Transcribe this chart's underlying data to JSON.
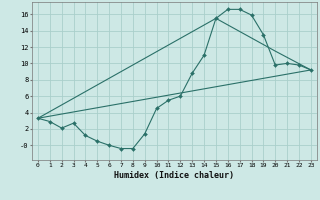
{
  "background_color": "#cde8e5",
  "grid_color": "#aacfcb",
  "line_color": "#2a7068",
  "marker_color": "#2a7068",
  "xlabel": "Humidex (Indice chaleur)",
  "xlim": [
    -0.5,
    23.5
  ],
  "ylim": [
    -1.8,
    17.5
  ],
  "xticks": [
    0,
    1,
    2,
    3,
    4,
    5,
    6,
    7,
    8,
    9,
    10,
    11,
    12,
    13,
    14,
    15,
    16,
    17,
    18,
    19,
    20,
    21,
    22,
    23
  ],
  "yticks": [
    0,
    2,
    4,
    6,
    8,
    10,
    12,
    14,
    16
  ],
  "ytick_labels": [
    "-0",
    "2",
    "4",
    "6",
    "8",
    "10",
    "12",
    "14",
    "16"
  ],
  "line1_x": [
    0,
    1,
    2,
    3,
    4,
    5,
    6,
    7,
    8,
    9,
    10,
    11,
    12,
    13,
    14,
    15,
    16,
    17,
    18,
    19,
    20,
    21,
    22,
    23
  ],
  "line1_y": [
    3.3,
    2.9,
    2.1,
    2.7,
    1.2,
    0.5,
    0.0,
    -0.4,
    -0.4,
    1.4,
    4.5,
    5.5,
    6.0,
    8.8,
    11.0,
    15.5,
    16.6,
    16.6,
    15.9,
    13.5,
    9.8,
    10.0,
    9.8,
    9.2
  ],
  "line2_x": [
    0,
    23
  ],
  "line2_y": [
    3.3,
    9.2
  ],
  "line3_x": [
    0,
    15,
    20,
    23
  ],
  "line3_y": [
    3.3,
    15.5,
    11.5,
    9.2
  ]
}
